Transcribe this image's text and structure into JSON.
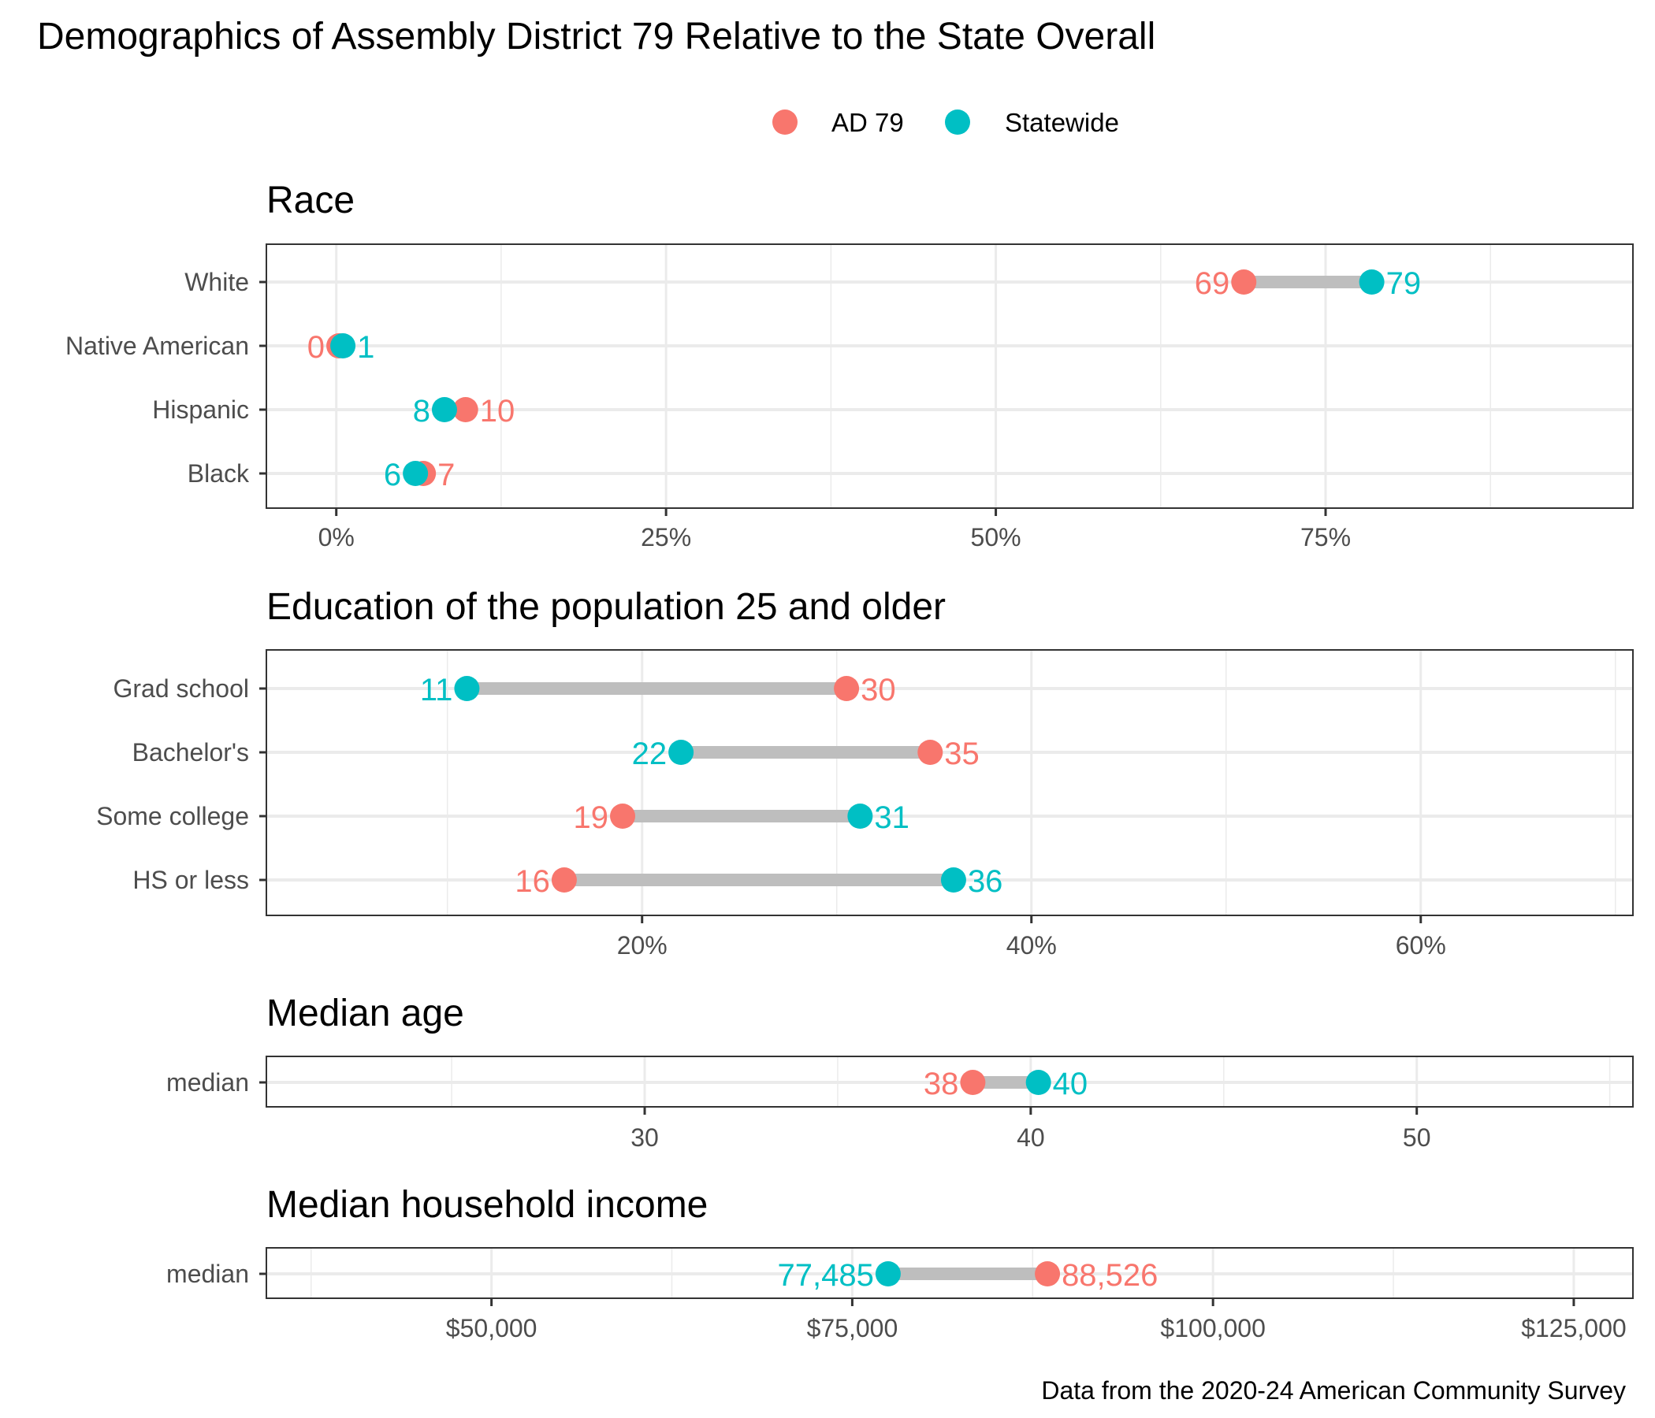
{
  "title": "Demographics of Assembly District 79 Relative to the State Overall",
  "caption": "Data from the 2020-24 American Community Survey",
  "legend": {
    "position": "top-center",
    "items": [
      {
        "label": "AD 79",
        "color": "#F8766D"
      },
      {
        "label": "Statewide",
        "color": "#00BFC4"
      }
    ]
  },
  "colors": {
    "district": "#F8766D",
    "statewide": "#00BFC4",
    "segment": "#BEBEBE",
    "grid": "#EBEBEB",
    "border": "#333333"
  },
  "chart_data": [
    {
      "type": "dumbbell",
      "title": "Race",
      "categories": [
        "White",
        "Native American",
        "Hispanic",
        "Black"
      ],
      "series": [
        {
          "name": "AD 79",
          "values": [
            68.8,
            0.2,
            9.8,
            6.6
          ],
          "labels": [
            "69",
            "0",
            "10",
            "7"
          ]
        },
        {
          "name": "Statewide",
          "values": [
            78.5,
            0.5,
            8.2,
            6.0
          ],
          "labels": [
            "79",
            "1",
            "8",
            "6"
          ]
        }
      ],
      "xlim": [
        -5.3,
        98.3
      ],
      "xticks": [
        0,
        25,
        50,
        75
      ],
      "xtick_labels": [
        "0%",
        "25%",
        "50%",
        "75%"
      ],
      "xminor": [
        12.5,
        37.5,
        62.5,
        87.5
      ],
      "grid": true
    },
    {
      "type": "dumbbell",
      "title": "Education of the population 25 and older",
      "categories": [
        "Grad school",
        "Bachelor's",
        "Some college",
        "HS or less"
      ],
      "series": [
        {
          "name": "AD 79",
          "values": [
            30.5,
            34.8,
            19.0,
            16.0
          ],
          "labels": [
            "30",
            "35",
            "19",
            "16"
          ]
        },
        {
          "name": "Statewide",
          "values": [
            11.0,
            22.0,
            31.2,
            36.0
          ],
          "labels": [
            "11",
            "22",
            "31",
            "36"
          ]
        }
      ],
      "xlim": [
        0.7,
        70.9
      ],
      "xticks": [
        20,
        40,
        60
      ],
      "xtick_labels": [
        "20%",
        "40%",
        "60%"
      ],
      "xminor": [
        10,
        30,
        50,
        70
      ],
      "grid": true
    },
    {
      "type": "dumbbell",
      "title": "Median age",
      "categories": [
        "median"
      ],
      "series": [
        {
          "name": "AD 79",
          "values": [
            38.5
          ],
          "labels": [
            "38"
          ]
        },
        {
          "name": "Statewide",
          "values": [
            40.2
          ],
          "labels": [
            "40"
          ]
        }
      ],
      "xlim": [
        20.2,
        55.6
      ],
      "xticks": [
        30,
        40,
        50
      ],
      "xtick_labels": [
        "30",
        "40",
        "50"
      ],
      "xminor": [
        25,
        35,
        45,
        55
      ],
      "grid": true
    },
    {
      "type": "dumbbell",
      "title": "Median household income",
      "categories": [
        "median"
      ],
      "series": [
        {
          "name": "AD 79",
          "values": [
            88526
          ],
          "labels": [
            "88,526"
          ]
        },
        {
          "name": "Statewide",
          "values": [
            77485
          ],
          "labels": [
            "77,485"
          ]
        }
      ],
      "xlim": [
        34400,
        129100
      ],
      "xticks": [
        50000,
        75000,
        100000,
        125000
      ],
      "xtick_labels": [
        "$50,000",
        "$75,000",
        "$100,000",
        "$125,000"
      ],
      "xminor": [
        37500,
        62500,
        87500,
        112500
      ],
      "grid": true
    }
  ]
}
